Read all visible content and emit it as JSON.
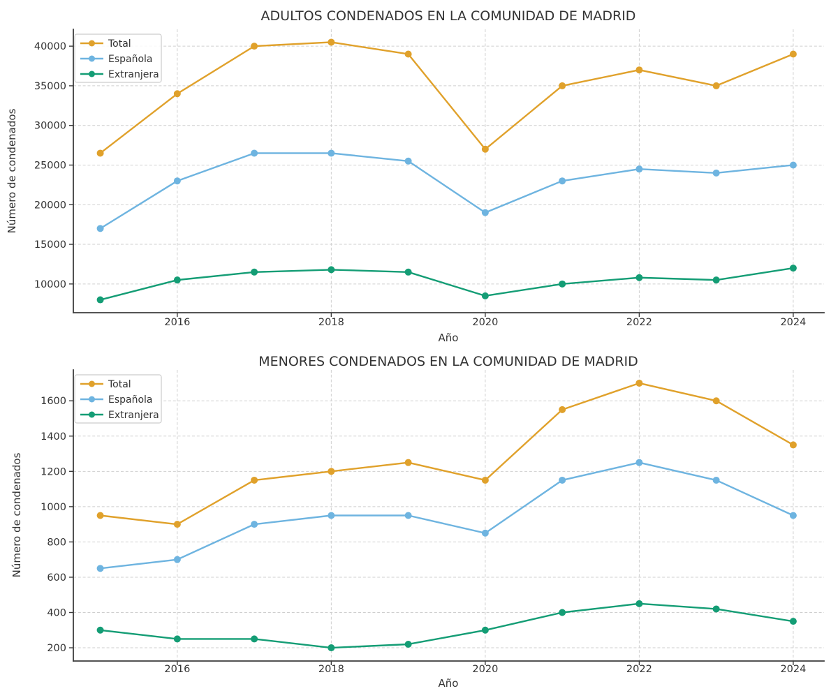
{
  "figure": {
    "background": "#FFFFFF"
  },
  "style": {
    "grid_color": "#CFCFCF",
    "spine_color": "#3C3C3C",
    "tick_color": "#3C3C3C",
    "text_color": "#333333",
    "legend_border_color": "#CCCCCC",
    "legend_background": "#FFFFFF",
    "series_colors": {
      "total": "#E0A12B",
      "espanola": "#6EB4E0",
      "extranjera": "#149D75"
    }
  },
  "chart_data": [
    {
      "type": "line",
      "title": "ADULTOS CONDENADOS EN LA COMUNIDAD DE MADRID",
      "xlabel": "Año",
      "ylabel": "Número de condenados",
      "x": [
        2015,
        2016,
        2017,
        2018,
        2019,
        2020,
        2021,
        2022,
        2023,
        2024
      ],
      "xticks": [
        2016,
        2018,
        2020,
        2022,
        2024
      ],
      "yticks": [
        10000,
        15000,
        20000,
        25000,
        30000,
        35000,
        40000
      ],
      "xlim": [
        2014.65,
        2024.4
      ],
      "ylim": [
        6375,
        42125
      ],
      "grid": true,
      "legend_position": "upper-left",
      "series": [
        {
          "name": "Total",
          "color": "#E0A12B",
          "values": [
            26500,
            34000,
            40000,
            40500,
            39000,
            27000,
            35000,
            37000,
            35000,
            39000
          ]
        },
        {
          "name": "Española",
          "color": "#6EB4E0",
          "values": [
            17000,
            23000,
            26500,
            26500,
            25500,
            19000,
            23000,
            24500,
            24000,
            25000
          ]
        },
        {
          "name": "Extranjera",
          "color": "#149D75",
          "values": [
            8000,
            10500,
            11500,
            11800,
            11500,
            8500,
            10000,
            10800,
            10500,
            12000
          ]
        }
      ]
    },
    {
      "type": "line",
      "title": "MENORES CONDENADOS EN LA COMUNIDAD DE MADRID",
      "xlabel": "Año",
      "ylabel": "Número de condenados",
      "x": [
        2015,
        2016,
        2017,
        2018,
        2019,
        2020,
        2021,
        2022,
        2023,
        2024
      ],
      "xticks": [
        2016,
        2018,
        2020,
        2022,
        2024
      ],
      "yticks": [
        200,
        400,
        600,
        800,
        1000,
        1200,
        1400,
        1600
      ],
      "xlim": [
        2014.65,
        2024.4
      ],
      "ylim": [
        125,
        1775
      ],
      "grid": true,
      "legend_position": "upper-left",
      "series": [
        {
          "name": "Total",
          "color": "#E0A12B",
          "values": [
            950,
            900,
            1150,
            1200,
            1250,
            1150,
            1550,
            1700,
            1600,
            1350
          ]
        },
        {
          "name": "Española",
          "color": "#6EB4E0",
          "values": [
            650,
            700,
            900,
            950,
            950,
            850,
            1150,
            1250,
            1150,
            950
          ]
        },
        {
          "name": "Extranjera",
          "color": "#149D75",
          "values": [
            300,
            250,
            250,
            200,
            220,
            300,
            400,
            450,
            420,
            350
          ]
        }
      ]
    }
  ]
}
